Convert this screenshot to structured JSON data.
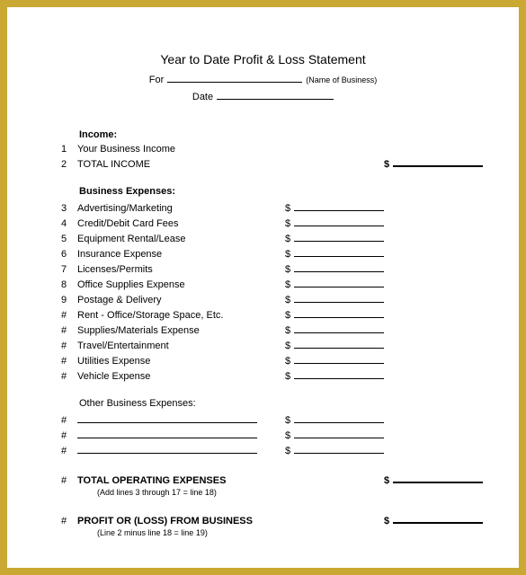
{
  "title": "Year to Date Profit & Loss Statement",
  "header": {
    "for_label": "For",
    "for_hint": "(Name of Business)",
    "date_label": "Date"
  },
  "income": {
    "heading": "Income:",
    "lines": [
      {
        "num": "1",
        "label": "Your Business Income"
      },
      {
        "num": "2",
        "label": "TOTAL INCOME"
      }
    ]
  },
  "expenses": {
    "heading": "Business Expenses:",
    "lines": [
      {
        "num": "3",
        "label": "Advertising/Marketing"
      },
      {
        "num": "4",
        "label": "Credit/Debit Card Fees"
      },
      {
        "num": "5",
        "label": "Equipment Rental/Lease"
      },
      {
        "num": "6",
        "label": "Insurance Expense"
      },
      {
        "num": "7",
        "label": "Licenses/Permits"
      },
      {
        "num": "8",
        "label": "Office Supplies Expense"
      },
      {
        "num": "9",
        "label": "Postage & Delivery"
      },
      {
        "num": "#",
        "label": "Rent - Office/Storage Space, Etc."
      },
      {
        "num": "#",
        "label": "Supplies/Materials Expense"
      },
      {
        "num": "#",
        "label": "Travel/Entertainment"
      },
      {
        "num": "#",
        "label": "Utilities Expense"
      },
      {
        "num": "#",
        "label": "Vehicle Expense"
      }
    ]
  },
  "other": {
    "heading": "Other Business Expenses:",
    "lines": [
      {
        "num": "#"
      },
      {
        "num": "#"
      },
      {
        "num": "#"
      }
    ]
  },
  "total_expenses": {
    "num": "#",
    "label": "TOTAL OPERATING EXPENSES",
    "note": "(Add lines 3 through 17 = line 18)"
  },
  "profit_loss": {
    "num": "#",
    "label": "PROFIT OR (LOSS) FROM BUSINESS",
    "note": "(Line 2 minus line 18 = line 19)"
  }
}
